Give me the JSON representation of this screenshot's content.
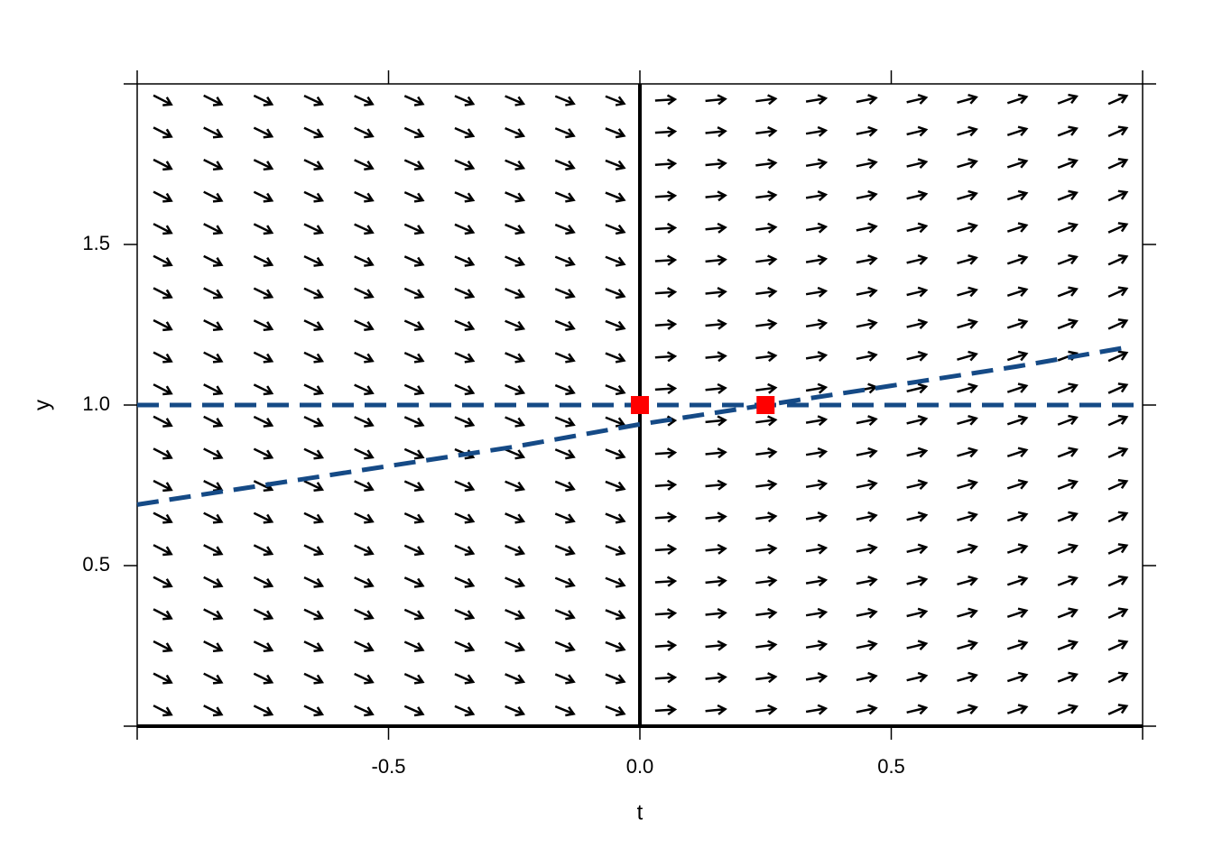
{
  "chart_data": {
    "type": "slope-field",
    "xlabel": "t",
    "ylabel": "y",
    "xlim": [
      -1,
      1
    ],
    "ylim": [
      0,
      2
    ],
    "xticks": [
      -0.5,
      {
        "value": 0,
        "label": "0.0"
      },
      0.5
    ],
    "yticks": [
      0.5,
      {
        "value": 1,
        "label": "1.0"
      },
      1.5
    ],
    "field": {
      "t": [
        -0.95,
        -0.85,
        -0.75,
        -0.65,
        -0.55,
        -0.45,
        -0.35,
        -0.25,
        -0.15,
        -0.05,
        0.05,
        0.15,
        0.25,
        0.35,
        0.45,
        0.55,
        0.65,
        0.75,
        0.85,
        0.95
      ],
      "y": [
        0.05,
        0.15,
        0.25,
        0.35,
        0.45,
        0.55,
        0.65,
        0.75,
        0.85,
        0.95,
        1.05,
        1.15,
        1.25,
        1.35,
        1.45,
        1.55,
        1.65,
        1.75,
        1.85,
        1.95
      ],
      "slopes": [
        -0.8,
        -0.78,
        -0.76,
        -0.74,
        -0.72,
        -0.7,
        -0.68,
        -0.66,
        -0.64,
        -0.62,
        0.1,
        0.15,
        0.2,
        0.26,
        0.32,
        0.38,
        0.45,
        0.52,
        0.6,
        0.7
      ],
      "color": "#000000"
    },
    "series": [
      {
        "x": [
          -1,
          1
        ],
        "values": [
          1,
          1
        ],
        "color": "#154a86"
      },
      {
        "x": [
          -1,
          -0.75,
          -0.5,
          -0.25,
          0,
          0.25,
          0.5,
          0.75,
          0.97
        ],
        "values": [
          0.69,
          0.75,
          0.81,
          0.87,
          0.94,
          1.0,
          1.06,
          1.12,
          1.18
        ],
        "color": "#154a86"
      }
    ],
    "points": {
      "x": [
        0,
        0.25
      ],
      "y": [
        1,
        1
      ],
      "color": "#ff0000"
    }
  }
}
